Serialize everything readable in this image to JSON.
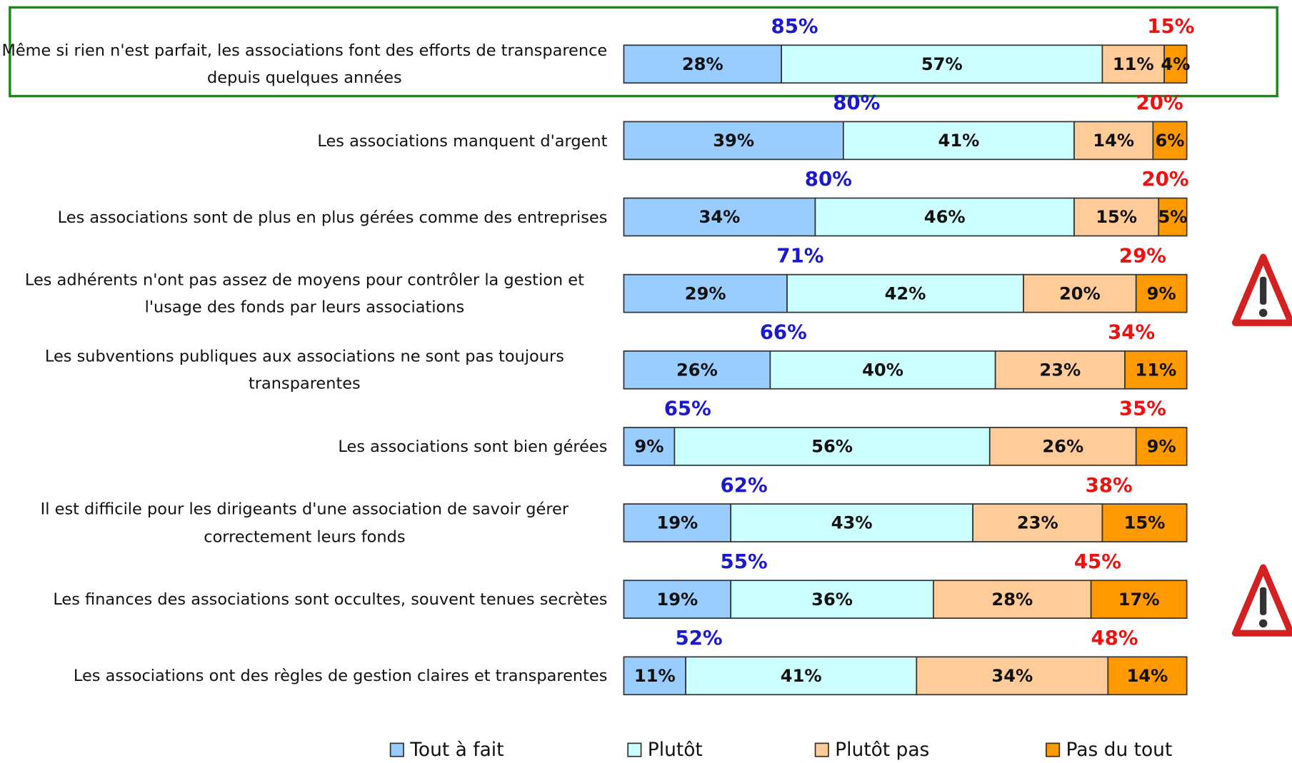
{
  "chart_data": {
    "type": "stacked-bar-horizontal",
    "categories": [
      "Même si rien n'est parfait, les associations font des efforts de transparence depuis quelques années",
      "Les associations manquent d'argent",
      "Les associations sont de plus en plus gérées comme des entreprises",
      "Les adhérents n'ont pas assez de moyens pour contrôler la gestion et l'usage des fonds par leurs associations",
      "Les subventions publiques aux associations ne sont pas toujours transparentes",
      "Les associations sont bien gérées",
      "Il est difficile pour les dirigeants d'une association de savoir gérer correctement leurs fonds",
      "Les finances des associations sont occultes, souvent tenues secrètes",
      "Les associations ont des règles de gestion claires et transparentes"
    ],
    "series": [
      {
        "name": "Tout à fait",
        "color": "#99ccff",
        "values": [
          28,
          39,
          34,
          29,
          26,
          9,
          19,
          19,
          11
        ],
        "value_labels": [
          "28%",
          "39%",
          "34%",
          "29%",
          "26%",
          "9%",
          "19%",
          "19%",
          "11%"
        ]
      },
      {
        "name": "Plutôt",
        "color": "#ccffff",
        "values": [
          57,
          41,
          46,
          42,
          40,
          56,
          43,
          36,
          41
        ],
        "value_labels": [
          "57%",
          "41%",
          "46%",
          "42%",
          "40%",
          "56%",
          "43%",
          "36%",
          "41%"
        ]
      },
      {
        "name": "Plutôt pas",
        "color": "#ffcc99",
        "values": [
          11,
          14,
          15,
          20,
          23,
          26,
          23,
          28,
          34
        ],
        "value_labels": [
          "11%",
          "14%",
          "15%",
          "20%",
          "23%",
          "26%",
          "23%",
          "28%",
          "34%"
        ]
      },
      {
        "name": "Pas du tout",
        "color": "#ff9900",
        "values": [
          4,
          6,
          5,
          9,
          11,
          9,
          15,
          17,
          14
        ],
        "value_labels": [
          "4%",
          "6%",
          "5%",
          "9%",
          "11%",
          "9%",
          "15%",
          "17%",
          "14%"
        ]
      }
    ],
    "agree_totals": {
      "color": "#1a1acc",
      "values": [
        85,
        80,
        80,
        71,
        66,
        65,
        62,
        55,
        52
      ],
      "value_labels": [
        "85%",
        "80%",
        "80%",
        "71%",
        "66%",
        "65%",
        "62%",
        "55%",
        "52%"
      ]
    },
    "disagree_totals": {
      "color": "#ee1111",
      "values": [
        15,
        20,
        20,
        29,
        34,
        35,
        38,
        45,
        48
      ],
      "value_labels": [
        "15%",
        "20%",
        "20%",
        "29%",
        "34%",
        "35%",
        "38%",
        "45%",
        "48%"
      ]
    },
    "xlim": [
      0,
      100
    ],
    "legend": "bottom"
  }
}
